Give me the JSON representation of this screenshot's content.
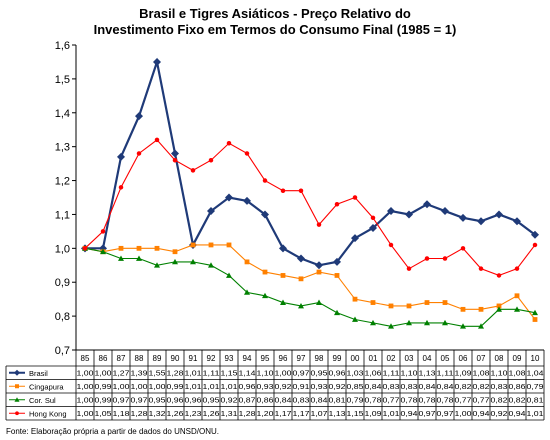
{
  "chart_data": {
    "type": "line",
    "title_line1": "Brasil e Tigres Asiáticos - Preço Relativo do",
    "title_line2": "Investimento Fixo em Termos do Consumo Final (1985 = 1)",
    "ylim": [
      0.7,
      1.6
    ],
    "yticks": [
      "0,7",
      "0,8",
      "0,9",
      "1,0",
      "1,1",
      "1,2",
      "1,3",
      "1,4",
      "1,5",
      "1,6"
    ],
    "ytick_values": [
      0.7,
      0.8,
      0.9,
      1.0,
      1.1,
      1.2,
      1.3,
      1.4,
      1.5,
      1.6
    ],
    "categories": [
      "85",
      "86",
      "87",
      "88",
      "89",
      "90",
      "91",
      "92",
      "93",
      "94",
      "95",
      "96",
      "97",
      "98",
      "99",
      "00",
      "01",
      "02",
      "03",
      "04",
      "05",
      "06",
      "07",
      "08",
      "09",
      "10"
    ],
    "grid": "none",
    "legend": "table-below",
    "series": [
      {
        "name": "Brasil",
        "color": "#1f3a78",
        "marker": "diamond",
        "values": [
          1.0,
          1.0,
          1.27,
          1.39,
          1.55,
          1.28,
          1.01,
          1.11,
          1.15,
          1.14,
          1.1,
          1.0,
          0.97,
          0.95,
          0.96,
          1.03,
          1.06,
          1.11,
          1.1,
          1.13,
          1.11,
          1.09,
          1.08,
          1.1,
          1.08,
          1.04
        ],
        "labels": [
          "1,00",
          "1,00",
          "1,27",
          "1,39",
          "1,55",
          "1,28",
          "1,01",
          "1,11",
          "1,15",
          "1,14",
          "1,10",
          "1,00",
          "0,97",
          "0,95",
          "0,96",
          "1,03",
          "1,06",
          "1,11",
          "1,10",
          "1,13",
          "1,11",
          "1,09",
          "1,08",
          "1,10",
          "1,08",
          "1,04"
        ]
      },
      {
        "name": "Cingapura",
        "color": "#ff8000",
        "marker": "square",
        "values": [
          1.0,
          0.99,
          1.0,
          1.0,
          1.0,
          0.99,
          1.01,
          1.01,
          1.01,
          0.96,
          0.93,
          0.92,
          0.91,
          0.93,
          0.92,
          0.85,
          0.84,
          0.83,
          0.83,
          0.84,
          0.84,
          0.82,
          0.82,
          0.83,
          0.86,
          0.79
        ],
        "labels": [
          "1,00",
          "0,99",
          "1,00",
          "1,00",
          "1,00",
          "0,99",
          "1,01",
          "1,01",
          "1,01",
          "0,96",
          "0,93",
          "0,92",
          "0,91",
          "0,93",
          "0,92",
          "0,85",
          "0,84",
          "0,83",
          "0,83",
          "0,84",
          "0,84",
          "0,82",
          "0,82",
          "0,83",
          "0,86",
          "0,79"
        ]
      },
      {
        "name": "Cor. Sul",
        "color": "#008000",
        "marker": "triangle",
        "values": [
          1.0,
          0.99,
          0.97,
          0.97,
          0.95,
          0.96,
          0.96,
          0.95,
          0.92,
          0.87,
          0.86,
          0.84,
          0.83,
          0.84,
          0.81,
          0.79,
          0.78,
          0.77,
          0.78,
          0.78,
          0.78,
          0.77,
          0.77,
          0.82,
          0.82,
          0.81
        ],
        "labels": [
          "1,00",
          "0,99",
          "0,97",
          "0,97",
          "0,95",
          "0,96",
          "0,96",
          "0,95",
          "0,92",
          "0,87",
          "0,86",
          "0,84",
          "0,83",
          "0,84",
          "0,81",
          "0,79",
          "0,78",
          "0,77",
          "0,78",
          "0,78",
          "0,78",
          "0,77",
          "0,77",
          "0,82",
          "0,82",
          "0,81"
        ]
      },
      {
        "name": "Hong Kong",
        "color": "#ff0000",
        "marker": "circle",
        "values": [
          1.0,
          1.05,
          1.18,
          1.28,
          1.32,
          1.26,
          1.23,
          1.26,
          1.31,
          1.28,
          1.2,
          1.17,
          1.17,
          1.07,
          1.13,
          1.15,
          1.09,
          1.01,
          0.94,
          0.97,
          0.97,
          1.0,
          0.94,
          0.92,
          0.94,
          1.01
        ],
        "labels": [
          "1,00",
          "1,05",
          "1,18",
          "1,28",
          "1,32",
          "1,26",
          "1,23",
          "1,26",
          "1,31",
          "1,28",
          "1,20",
          "1,17",
          "1,17",
          "1,07",
          "1,13",
          "1,15",
          "1,09",
          "1,01",
          "0,94",
          "0,97",
          "0,97",
          "1,00",
          "0,94",
          "0,92",
          "0,94",
          "1,01"
        ]
      }
    ]
  },
  "footer": {
    "source": "Fonte: Elaboração própria a partir de dados do UNSD/ONU."
  }
}
